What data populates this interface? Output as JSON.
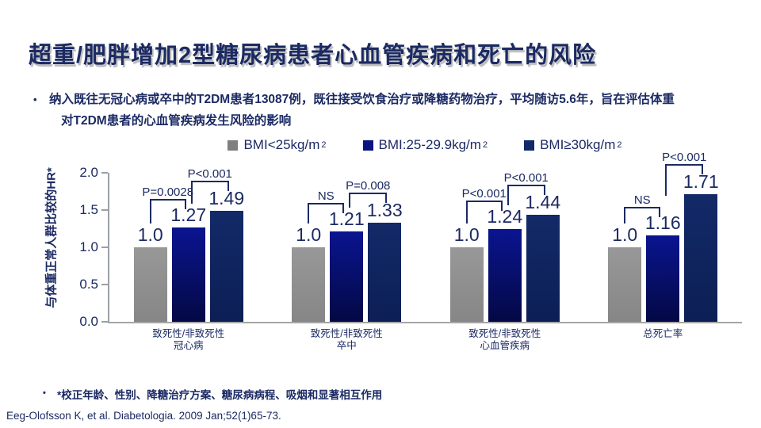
{
  "title": "超重/肥胖增加2型糖尿病患者心血管疾病和死亡的风险",
  "bullet": {
    "marker": "•",
    "line1": "纳入既往无冠心病或卒中的T2DM患者13087例，既往接受饮食治疗或降糖药物治疗，平均随访5.6年，旨在评估体重",
    "line2": "对T2DM患者的心血管疾病发生风险的影响"
  },
  "footnote": {
    "marker": "•",
    "text": "*校正年龄、性别、降糖治疗方案、糖尿病病程、吸烟和显著相互作用"
  },
  "citation": "Eeg-Olofsson K, et al. Diabetologia. 2009 Jan;52(1)65-73.",
  "colors": {
    "navy_text": "#1b2a63",
    "bar_gray": "#8c8c8c",
    "bar_navy_gradient_top": "#0a1490",
    "bar_navy_gradient_bottom": "#040845",
    "bar_dark_navy": "#10255e",
    "axis_gray": "#a6a6a6"
  },
  "chart_data": {
    "type": "bar",
    "title": "",
    "xlabel": "",
    "ylabel": "与体重正常人群比较的HR*",
    "ylim": [
      0.0,
      2.0
    ],
    "yticks": [
      0.0,
      0.5,
      1.0,
      1.5,
      2.0
    ],
    "grid": false,
    "legend_position": "top",
    "legend": [
      {
        "text": "BMI<25kg/m",
        "sup": "2",
        "color": "#7f7f7f"
      },
      {
        "text": "BMI:25-29.9kg/m",
        "sup": "2",
        "color": "#0a1480"
      },
      {
        "text": "BMI≥30kg/m",
        "sup": "2",
        "color": "#132a68"
      }
    ],
    "categories": [
      [
        "致死性/非致死性",
        "冠心病"
      ],
      [
        "致死性/非致死性",
        "卒中"
      ],
      [
        "致死性/非致死性",
        "心血管疾病"
      ],
      [
        "总死亡率"
      ]
    ],
    "series": [
      {
        "name": "BMI<25kg/m2",
        "values": [
          1.0,
          1.0,
          1.0,
          1.0
        ]
      },
      {
        "name": "BMI:25-29.9kg/m2",
        "values": [
          1.27,
          1.21,
          1.24,
          1.16
        ]
      },
      {
        "name": "BMI≥30kg/m2",
        "values": [
          1.49,
          1.33,
          1.44,
          1.71
        ]
      }
    ],
    "p_brackets": [
      {
        "left": "P=0.0028",
        "right": "P<0.001"
      },
      {
        "left": "NS",
        "right": "P=0.008"
      },
      {
        "left": "P<0.001",
        "right": "P<0.001"
      },
      {
        "left": "NS",
        "right": "P<0.001"
      }
    ]
  }
}
